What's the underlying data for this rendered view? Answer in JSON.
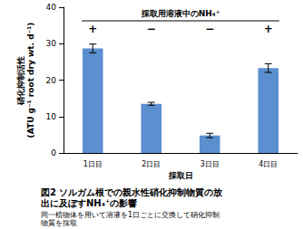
{
  "chart_data": {
    "type": "bar",
    "title": "図2 ソルガム根での親水性硝化抑制物質の放\n出に及ぼすNH₄⁺の影響",
    "subtitle": "同一植物体を用いて溶液を1日ごとに交換して硝化抑制\n物質を採取",
    "y_label": "硝化抑制活性\n(ATU g⁻¹ root dry wt. d⁻¹)",
    "x_label": "採取日",
    "categories": [
      "1日目",
      "2日目",
      "3日目",
      "4日目"
    ],
    "values": [
      28.7,
      13.5,
      4.8,
      23.3
    ],
    "errors": [
      1.2,
      0.4,
      0.6,
      1.2
    ],
    "color": "#5b8fd0",
    "annotations": {
      "header": "採取用溶液中のNH₄⁺",
      "signs": [
        "+",
        "−",
        "−",
        "+"
      ]
    },
    "ylim": [
      0,
      40
    ],
    "yticks": [
      0,
      10,
      20,
      30,
      40
    ],
    "grid": false
  }
}
